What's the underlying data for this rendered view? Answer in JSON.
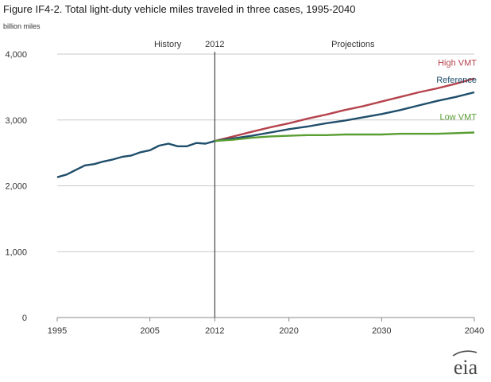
{
  "chart_data": {
    "type": "line",
    "title": "Figure IF4-2. Total light-duty vehicle miles traveled in three cases, 1995-2040",
    "ylabel": "billion miles",
    "xlabel": "",
    "xlim": [
      1995,
      2040
    ],
    "ylim": [
      0,
      4000
    ],
    "x_ticks": [
      "1995",
      "2005",
      "2012",
      "2020",
      "2030",
      "2040"
    ],
    "y_ticks": [
      "0",
      "1,000",
      "2,000",
      "3,000",
      "4,000"
    ],
    "grid": "horizontal",
    "divider_year": 2012,
    "annotations": {
      "history": "History",
      "divider": "2012",
      "projections": "Projections"
    },
    "series": [
      {
        "name": "History",
        "color": "#1f4e6b",
        "x": [
          1995,
          1996,
          1997,
          1998,
          1999,
          2000,
          2001,
          2002,
          2003,
          2004,
          2005,
          2006,
          2007,
          2008,
          2009,
          2010,
          2011,
          2012
        ],
        "values": [
          2130,
          2170,
          2240,
          2310,
          2330,
          2370,
          2400,
          2440,
          2460,
          2510,
          2540,
          2610,
          2640,
          2600,
          2600,
          2650,
          2640,
          2680
        ]
      },
      {
        "name": "High VMT",
        "color": "#b5434d",
        "x": [
          2012,
          2014,
          2016,
          2018,
          2020,
          2022,
          2024,
          2026,
          2028,
          2030,
          2032,
          2034,
          2036,
          2038,
          2040
        ],
        "values": [
          2680,
          2750,
          2820,
          2890,
          2950,
          3020,
          3080,
          3150,
          3210,
          3280,
          3350,
          3420,
          3480,
          3550,
          3630
        ]
      },
      {
        "name": "Reference",
        "color": "#1f4e6b",
        "x": [
          2012,
          2014,
          2016,
          2018,
          2020,
          2022,
          2024,
          2026,
          2028,
          2030,
          2032,
          2034,
          2036,
          2038,
          2040
        ],
        "values": [
          2680,
          2720,
          2760,
          2810,
          2860,
          2900,
          2950,
          2990,
          3040,
          3090,
          3150,
          3220,
          3290,
          3350,
          3420
        ]
      },
      {
        "name": "Low VMT",
        "color": "#5a9e34",
        "x": [
          2012,
          2014,
          2016,
          2018,
          2020,
          2022,
          2024,
          2026,
          2028,
          2030,
          2032,
          2034,
          2036,
          2038,
          2040
        ],
        "values": [
          2680,
          2700,
          2730,
          2750,
          2760,
          2770,
          2770,
          2780,
          2780,
          2780,
          2790,
          2790,
          2790,
          2800,
          2810
        ]
      }
    ]
  },
  "logo_text": "eia"
}
